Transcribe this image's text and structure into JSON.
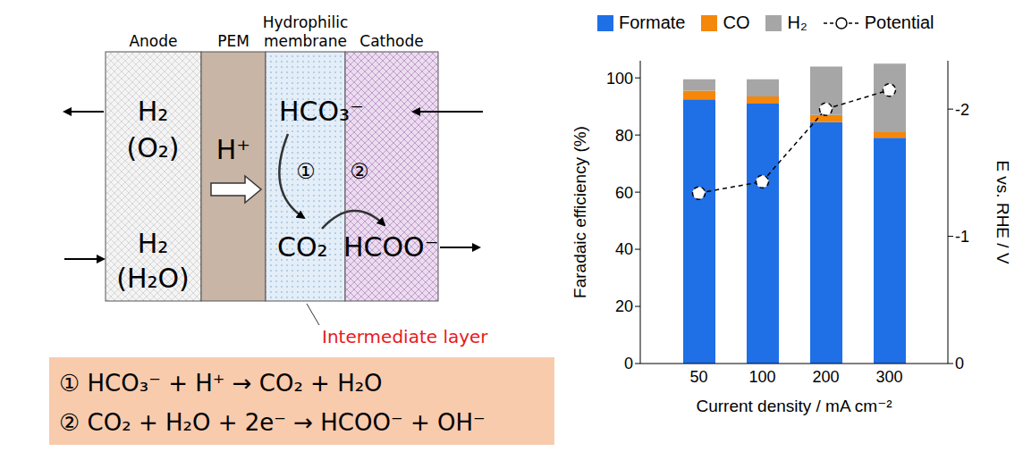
{
  "diagram": {
    "regions": [
      "Anode",
      "PEM",
      "Hydrophilic membrane",
      "Cathode"
    ],
    "anode_outlet": [
      "H₂",
      "(O₂)"
    ],
    "anode_inlet": [
      "H₂",
      "(H₂O)"
    ],
    "proton": "H⁺",
    "bicarbonate": "HCO₃⁻",
    "steps": [
      "①",
      "②"
    ],
    "co2": "CO₂",
    "product": "HCOO⁻",
    "intermediate_layer": "Intermediate layer",
    "equations": [
      "① HCO₃⁻ + H⁺ → CO₂ + H₂O",
      "② CO₂ + H₂O + 2e⁻ → HCOO⁻ + OH⁻"
    ]
  },
  "chart_data": {
    "type": "bar",
    "stacked": true,
    "categories": [
      "50",
      "100",
      "200",
      "300"
    ],
    "x_label": "Current density / mA cm⁻²",
    "y_label": "Faradaic efficiency (%)",
    "y2_label": "E vs. RHE / V",
    "ylim": [
      0,
      106
    ],
    "yticks": [
      0,
      20,
      40,
      60,
      80,
      100
    ],
    "y2lim": [
      0,
      -2.38
    ],
    "y2ticks": [
      0,
      -1,
      -2
    ],
    "legend": "top",
    "series": [
      {
        "name": "Formate",
        "color": "#1f6fe6",
        "values": [
          92.5,
          91,
          84.5,
          79
        ]
      },
      {
        "name": "CO",
        "color": "#f5870a",
        "values": [
          3,
          2.5,
          2.5,
          2
        ]
      },
      {
        "name": "H₂",
        "color": "#a6a6a6",
        "values": [
          4,
          6,
          17,
          24
        ]
      },
      {
        "name": "Potential",
        "type": "line",
        "axis": "y2",
        "color": "#000000",
        "line_style": "dashed",
        "marker": "open_circle",
        "values": [
          -1.34,
          -1.43,
          -2.0,
          -2.15
        ]
      }
    ]
  }
}
